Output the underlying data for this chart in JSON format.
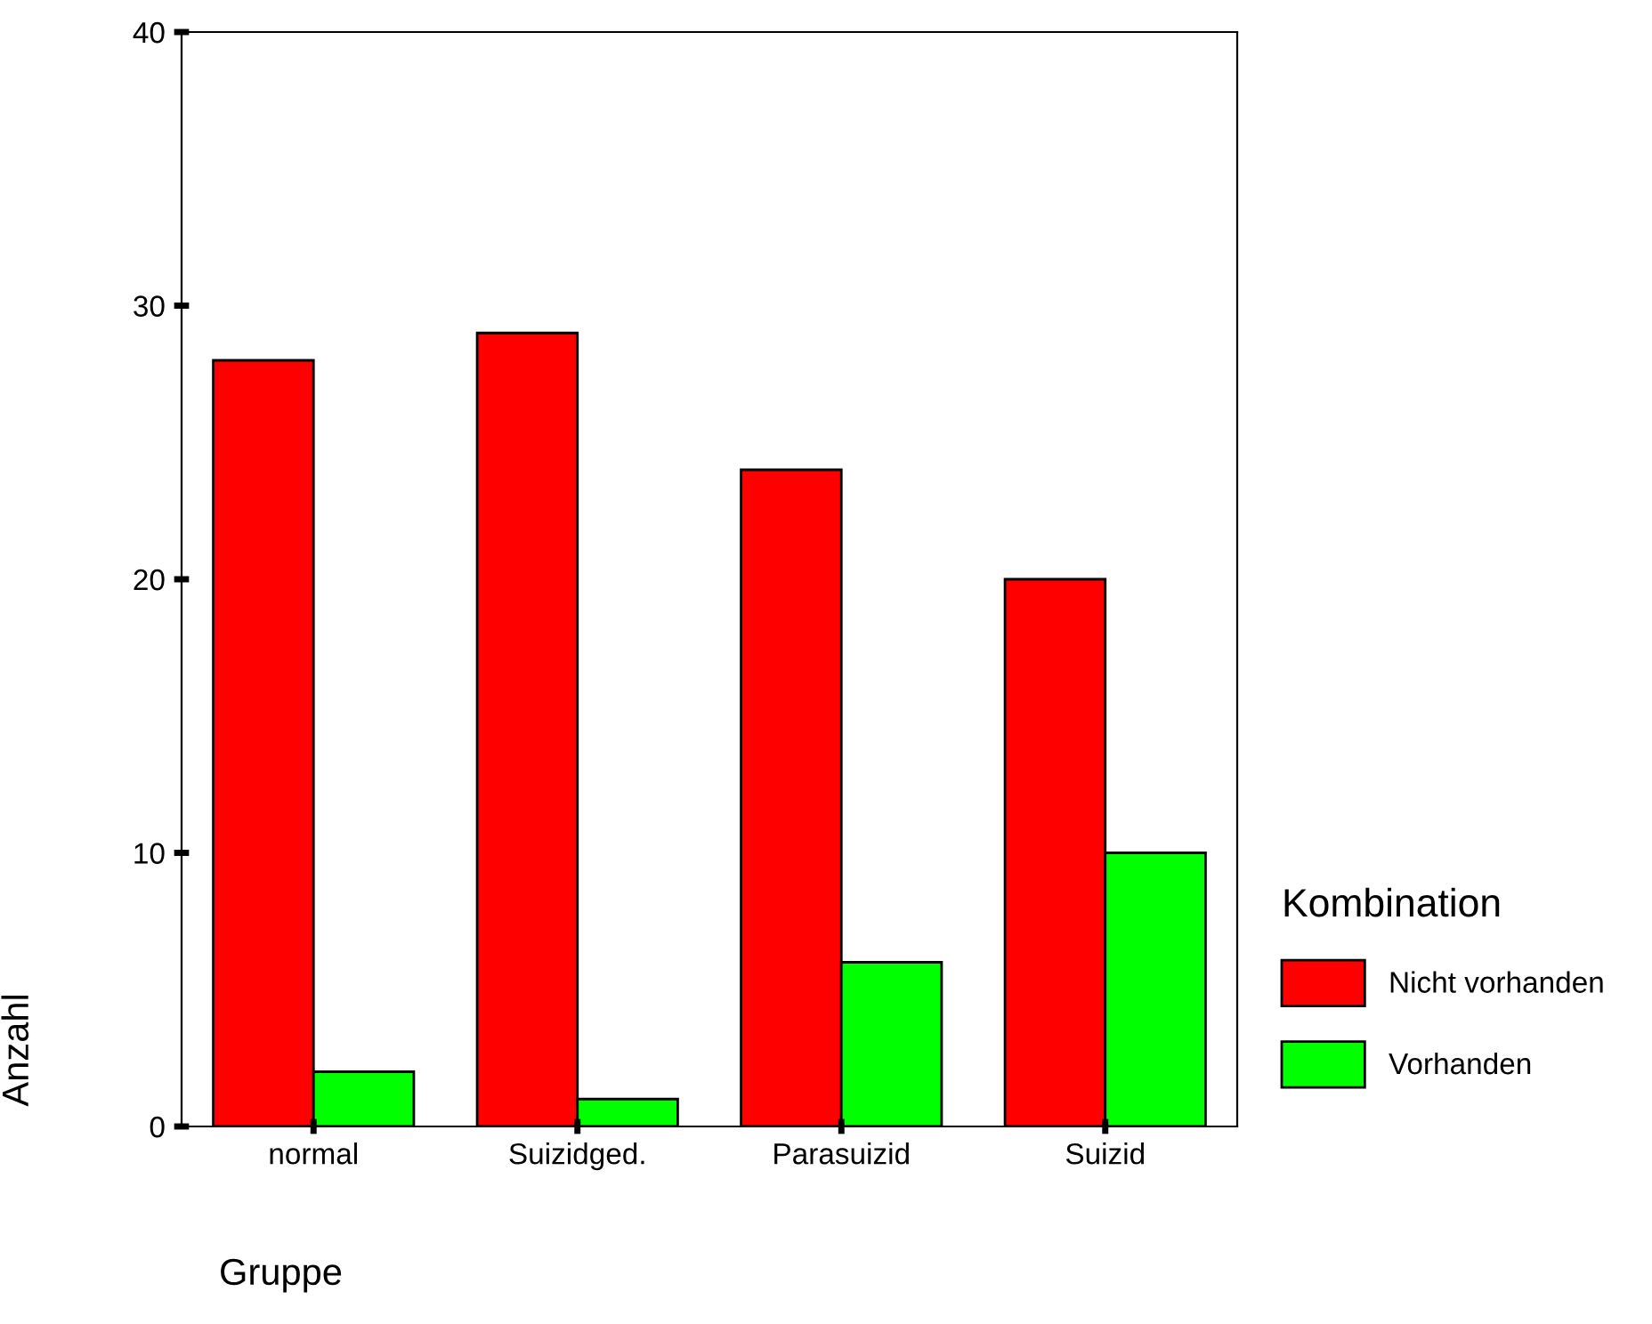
{
  "chart_data": {
    "type": "bar",
    "categories": [
      "normal",
      "Suizidged.",
      "Parasuizid",
      "Suizid"
    ],
    "xlabel": "Gruppe",
    "ylabel": "Anzahl",
    "legend_title": "Kombination",
    "legend": "right",
    "series": [
      {
        "name": "Nicht vorhanden",
        "color": "#ff0000",
        "values": [
          28,
          29,
          24,
          20
        ]
      },
      {
        "name": "Vorhanden",
        "color": "#00ff00",
        "values": [
          2,
          1,
          6,
          10
        ]
      }
    ],
    "ylim": [
      0,
      40
    ],
    "yticks": [
      0,
      10,
      20,
      30,
      40
    ],
    "grid": false
  }
}
